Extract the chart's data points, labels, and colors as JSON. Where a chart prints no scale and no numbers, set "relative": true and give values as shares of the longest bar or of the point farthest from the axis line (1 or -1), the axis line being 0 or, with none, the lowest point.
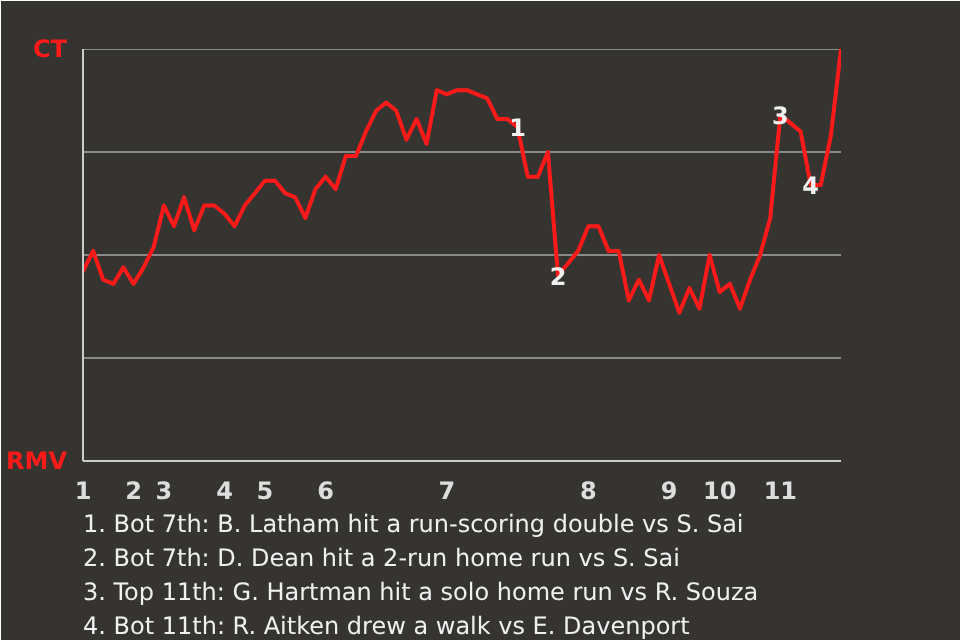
{
  "chart_data": {
    "type": "line",
    "relative": true,
    "categories": [
      "1",
      null,
      null,
      null,
      null,
      "2",
      null,
      null,
      "3",
      null,
      null,
      null,
      null,
      null,
      "4",
      null,
      null,
      null,
      "5",
      null,
      null,
      null,
      null,
      null,
      "6",
      null,
      null,
      null,
      null,
      null,
      null,
      null,
      null,
      null,
      null,
      null,
      "7",
      null,
      null,
      null,
      null,
      null,
      null,
      null,
      null,
      null,
      null,
      null,
      null,
      null,
      "8",
      null,
      null,
      null,
      null,
      null,
      null,
      null,
      "9",
      null,
      null,
      null,
      null,
      "10",
      null,
      null,
      null,
      null,
      null,
      "11",
      null,
      null,
      null,
      null,
      null,
      null
    ],
    "series": [
      {
        "color": "#ff1a1a",
        "values": [
          0.46,
          0.51,
          0.44,
          0.43,
          0.47,
          0.43,
          0.47,
          0.52,
          0.62,
          0.57,
          0.64,
          0.56,
          0.62,
          0.62,
          0.6,
          0.57,
          0.62,
          0.65,
          0.68,
          0.68,
          0.65,
          0.64,
          0.59,
          0.66,
          0.69,
          0.66,
          0.74,
          0.74,
          0.8,
          0.85,
          0.87,
          0.85,
          0.78,
          0.83,
          0.77,
          0.9,
          0.89,
          0.9,
          0.9,
          0.89,
          0.88,
          0.83,
          0.83,
          0.81,
          0.69,
          0.69,
          0.75,
          0.45,
          0.48,
          0.51,
          0.57,
          0.57,
          0.51,
          0.51,
          0.39,
          0.44,
          0.39,
          0.5,
          0.43,
          0.36,
          0.42,
          0.37,
          0.5,
          0.41,
          0.43,
          0.37,
          0.44,
          0.5,
          0.59,
          0.84,
          0.82,
          0.8,
          0.67,
          0.67,
          0.79,
          1.0
        ],
        "value_labels": [
          null,
          null,
          null,
          null,
          null,
          null,
          null,
          null,
          null,
          null,
          null,
          null,
          null,
          null,
          null,
          null,
          null,
          null,
          null,
          null,
          null,
          null,
          null,
          null,
          null,
          null,
          null,
          null,
          null,
          null,
          null,
          null,
          null,
          null,
          null,
          null,
          null,
          null,
          null,
          null,
          null,
          null,
          null,
          null,
          null,
          null,
          null,
          null,
          null,
          null,
          null,
          null,
          null,
          null,
          null,
          null,
          null,
          null,
          null,
          null,
          null,
          null,
          null,
          null,
          null,
          null,
          null,
          null,
          null,
          null,
          null,
          null,
          null,
          null,
          null,
          null
        ]
      }
    ],
    "ref_lines": [
      {
        "axis": "y",
        "value": 0.25,
        "color": "#8a8a8a"
      },
      {
        "axis": "y",
        "value": 0.5,
        "color": "#8a8a8a"
      },
      {
        "axis": "y",
        "value": 0.75,
        "color": "#8a8a8a"
      },
      {
        "axis": "y",
        "value": 1,
        "color": "#8a8a8a"
      }
    ],
    "marker": "none",
    "line_style": "solid",
    "annotations": [
      "CT",
      "RMV",
      {
        "text": "1",
        "y": 0.81
      },
      {
        "text": "2",
        "y": 0.45
      },
      {
        "text": "3",
        "y": 0.84
      },
      {
        "text": "4",
        "y": 0.67
      },
      "1. Bot 7th: B. Latham hit a run-scoring double vs S. Sai",
      "2. Bot 7th: D. Dean hit a 2-run home run vs S. Sai",
      "3. Top 11th: G. Hartman hit a solo home run vs R. Souza",
      "4. Bot 11th: R. Aitken drew a walk vs E. Davenport"
    ]
  }
}
